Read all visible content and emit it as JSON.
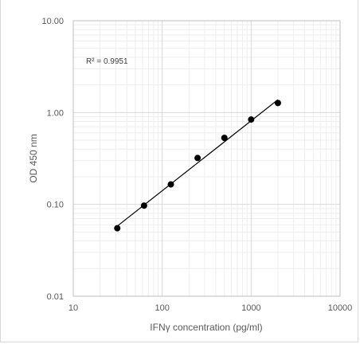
{
  "chart_data": {
    "type": "scatter",
    "title": "",
    "xlabel": "IFNγ concentration (pg/ml)",
    "ylabel": "OD 450 nm",
    "x_scale": "log",
    "y_scale": "log",
    "xlim": [
      10,
      10000
    ],
    "ylim": [
      0.01,
      10
    ],
    "x_ticks": [
      "10",
      "100",
      "1000",
      "10000"
    ],
    "y_ticks": [
      "0.01",
      "0.10",
      "1.00",
      "10.00"
    ],
    "grid": "major and minor",
    "series": [
      {
        "points": [
          {
            "x": 31.25,
            "y": 0.055
          },
          {
            "x": 62.5,
            "y": 0.097
          },
          {
            "x": 125,
            "y": 0.165
          },
          {
            "x": 250,
            "y": 0.32
          },
          {
            "x": 500,
            "y": 0.53
          },
          {
            "x": 1000,
            "y": 0.84
          },
          {
            "x": 2000,
            "y": 1.27
          }
        ]
      }
    ],
    "trendline": {
      "type": "power",
      "x_start": 31.25,
      "y_start": 0.058,
      "x_end": 2000,
      "y_end": 1.38
    },
    "annotation": "R² = 0.9951",
    "colors": {
      "marker": "#000000",
      "trendline": "#000000",
      "grid_major": "#d9d9d9",
      "grid_minor": "#eeeeee"
    }
  }
}
